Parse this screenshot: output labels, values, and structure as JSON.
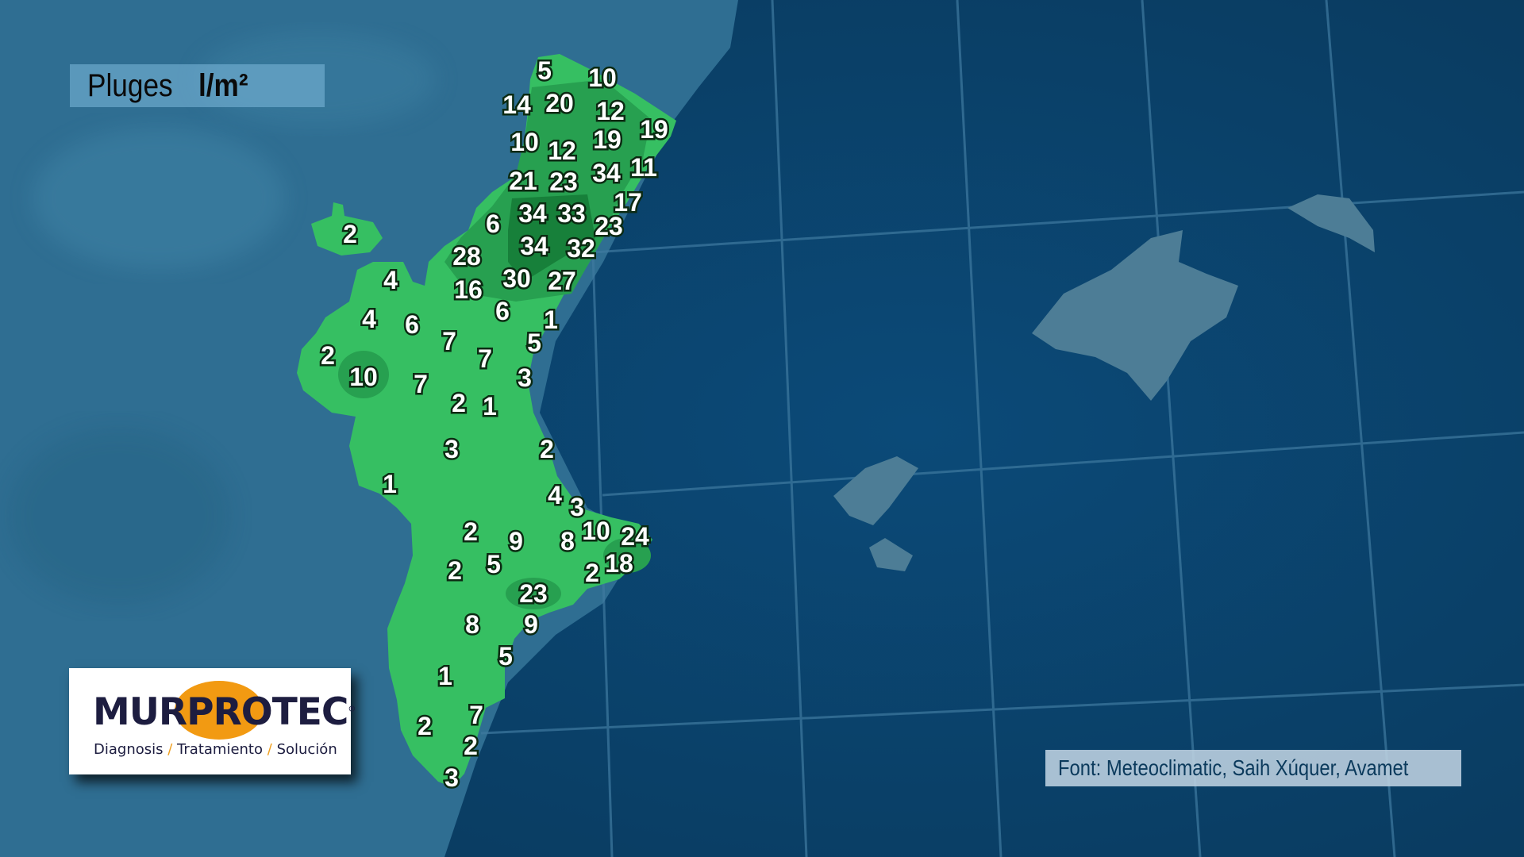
{
  "title": {
    "label": "Pluges",
    "unit": "l/m²"
  },
  "colors": {
    "rain_low": "#36bf62",
    "rain_mid": "#27a050",
    "rain_high": "#17803a",
    "sea": "#0d4670",
    "land_bg": "#2f6e92",
    "logo_orange": "#f29a12",
    "logo_navy": "#1d1d40"
  },
  "map": {
    "region": "Comunitat Valenciana",
    "station_values": [
      5,
      10,
      14,
      20,
      12,
      19,
      10,
      12,
      19,
      21,
      23,
      34,
      11,
      17,
      6,
      34,
      33,
      23,
      2,
      28,
      34,
      32,
      4,
      16,
      30,
      27,
      6,
      1,
      4,
      6,
      7,
      5,
      7,
      2,
      10,
      7,
      3,
      2,
      1,
      3,
      2,
      1,
      4,
      3,
      2,
      9,
      8,
      10,
      24,
      2,
      5,
      2,
      18,
      23,
      8,
      9,
      5,
      1,
      7,
      2,
      2,
      3
    ]
  },
  "logo": {
    "brand_left": "MUR",
    "brand_mid": "PRO",
    "brand_right": "TEC",
    "registered": "®",
    "tag1": "Diagnosis",
    "tag2": "Tratamiento",
    "tag3": "Solución",
    "sep": "/"
  },
  "source": "Font: Meteoclimatic, Saih Xúquer, Avamet"
}
